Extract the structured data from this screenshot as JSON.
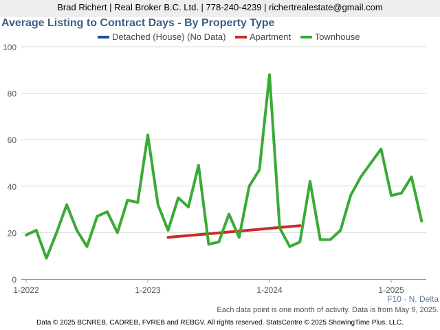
{
  "header": {
    "contact": "Brad Richert | Real Broker B.C. Ltd. | 778-240-4239 | richertrealestate@gmail.com"
  },
  "chart_data": {
    "type": "line",
    "title": "Average Listing to Contract Days - By Property Type",
    "xlabel": "",
    "ylabel": "",
    "x_start": "2022-01",
    "x_tick_labels": [
      "1-2022",
      "1-2023",
      "1-2024",
      "1-2025"
    ],
    "ylim": [
      0,
      100
    ],
    "y_ticks": [
      0,
      20,
      40,
      60,
      80,
      100
    ],
    "grid": true,
    "legend_position": "top",
    "series": [
      {
        "name": "Detached (House) (No Data)",
        "color": "#1f4e9c",
        "start": "2022-01",
        "values": []
      },
      {
        "name": "Apartment",
        "color": "#cc2a2a",
        "start": "2023-03",
        "values": [
          18,
          23
        ]
      },
      {
        "name": "Townhouse",
        "color": "#3aaa35",
        "start": "2022-01",
        "values": [
          19,
          21,
          9,
          20,
          32,
          21,
          14,
          27,
          29,
          20,
          34,
          33,
          62,
          32,
          21,
          35,
          31,
          49,
          15,
          16,
          28,
          18,
          40,
          47,
          88,
          22,
          14,
          16,
          42,
          17,
          17,
          21,
          36,
          44,
          50,
          56,
          36,
          37,
          44,
          25
        ]
      }
    ]
  },
  "region_label": "F10 - N. Delta",
  "footnote": "Each data point is one month of activity. Data is from May 9, 2025.",
  "copyright": "Data © 2025 BCNREB, CADREB, FVREB and REBGV. All rights reserved. StatsCentre © 2025 ShowingTime Plus, LLC."
}
